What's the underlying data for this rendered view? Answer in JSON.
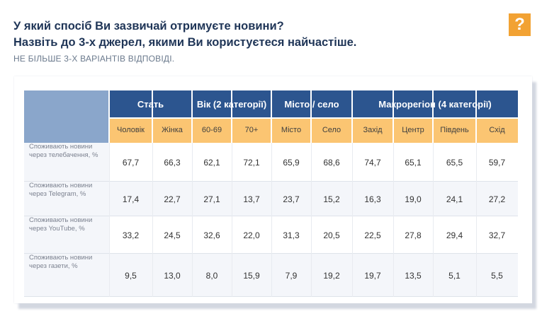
{
  "header": {
    "question_line1": "У який спосіб Ви зазвичай отримуєте новини?",
    "question_line2": "Назвіть до 3-х джерел, якими Ви користуєтеся найчастіше.",
    "note": "НЕ БІЛЬШЕ 3-Х ВАРІАНТІВ ВІДПОВІДІ.",
    "help_icon_glyph": "?"
  },
  "table": {
    "groups": [
      {
        "label": "Стать",
        "subcolumns": [
          "Чоловік",
          "Жінка"
        ]
      },
      {
        "label": "Вік (2 категорії)",
        "subcolumns": [
          "60-69",
          "70+"
        ]
      },
      {
        "label": "Місто / село",
        "subcolumns": [
          "Місто",
          "Село"
        ]
      },
      {
        "label": "Макрорегіон (4 категорії)",
        "subcolumns": [
          "Захід",
          "Центр",
          "Південь",
          "Схід"
        ]
      }
    ],
    "rows": [
      {
        "label_line1": "Споживають новини",
        "label_line2": "через телебачення, %",
        "values": [
          "67,7",
          "66,3",
          "62,1",
          "72,1",
          "65,9",
          "68,6",
          "74,7",
          "65,1",
          "65,5",
          "59,7"
        ]
      },
      {
        "label_line1": "Споживають новини",
        "label_line2": "через Telegram, %",
        "values": [
          "17,4",
          "22,7",
          "27,1",
          "13,7",
          "23,7",
          "15,2",
          "16,3",
          "19,0",
          "24,1",
          "27,2"
        ]
      },
      {
        "label_line1": "Споживають новини",
        "label_line2": "через YouTube, %",
        "values": [
          "33,2",
          "24,5",
          "32,6",
          "22,0",
          "31,3",
          "20,5",
          "22,5",
          "27,8",
          "29,4",
          "32,7"
        ]
      },
      {
        "label_line1": "Споживають новини",
        "label_line2": "через газети, %",
        "values": [
          "9,5",
          "13,0",
          "8,0",
          "15,9",
          "7,9",
          "19,2",
          "19,7",
          "13,5",
          "5,1",
          "5,5"
        ]
      }
    ]
  },
  "colors": {
    "title": "#1f3557",
    "group_header_bg": "#2c558f",
    "subheader_bg": "#fbc572",
    "corner_bg": "#8aa6cb",
    "icon_bg": "#f2a233"
  }
}
